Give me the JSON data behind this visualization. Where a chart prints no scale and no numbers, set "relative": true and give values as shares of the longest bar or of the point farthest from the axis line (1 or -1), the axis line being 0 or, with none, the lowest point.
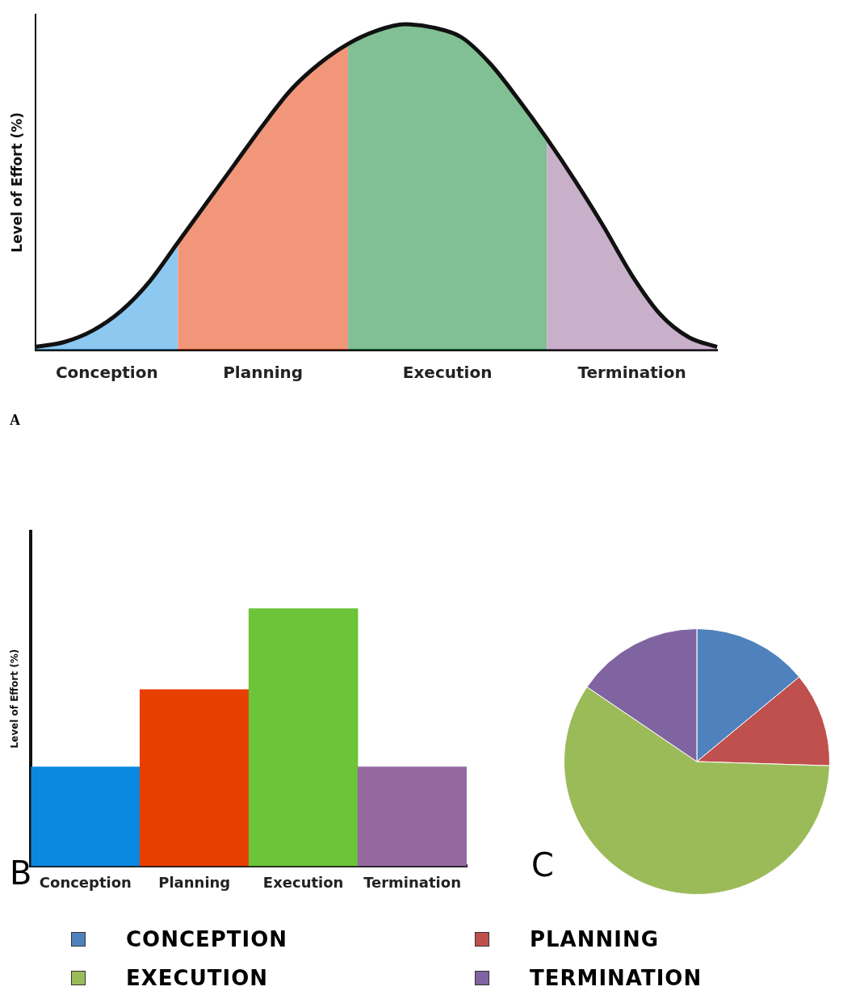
{
  "chart_data": [
    {
      "type": "area",
      "ylabel": "Level of Effort (%)",
      "relative": true,
      "categories": [
        null,
        null,
        null,
        null,
        null,
        null,
        null,
        null,
        null,
        null,
        null,
        null,
        null,
        null,
        null,
        null,
        null,
        null,
        null,
        null,
        null,
        null,
        null,
        null,
        null
      ],
      "marker": "none",
      "legend": false,
      "grid": false,
      "annotations": [
        "A"
      ],
      "series": [
        {
          "name": "Conception",
          "color": "#2f9be6",
          "values": [
            0.01,
            0.025,
            0.06,
            0.12,
            0.21,
            0.33,
            null,
            null,
            null,
            null,
            null,
            null,
            null,
            null,
            null,
            null,
            null,
            null,
            null,
            null,
            null,
            null,
            null,
            null,
            null
          ]
        },
        {
          "name": "Planning",
          "color": "#e8400c",
          "values": [
            null,
            null,
            null,
            null,
            null,
            0.33,
            0.45,
            0.57,
            0.69,
            0.8,
            0.88,
            0.94,
            null,
            null,
            null,
            null,
            null,
            null,
            null,
            null,
            null,
            null,
            null,
            null,
            null
          ]
        },
        {
          "name": "Execution",
          "color": "#1a8c3c",
          "values": [
            null,
            null,
            null,
            null,
            null,
            null,
            null,
            null,
            null,
            null,
            null,
            0.94,
            0.98,
            1,
            0.99,
            0.96,
            0.88,
            0.77,
            0.65,
            null,
            null,
            null,
            null,
            null,
            null
          ]
        },
        {
          "name": "Termination",
          "color": "#9b6fa0",
          "values": [
            null,
            null,
            null,
            null,
            null,
            null,
            null,
            null,
            null,
            null,
            null,
            null,
            null,
            null,
            null,
            null,
            null,
            null,
            0.65,
            0.52,
            0.38,
            0.23,
            0.11,
            0.04,
            0.01
          ]
        },
        {
          "type": "line",
          "color": "#111111",
          "values": [
            0.01,
            0.025,
            0.06,
            0.12,
            0.21,
            0.33,
            0.45,
            0.57,
            0.69,
            0.8,
            0.88,
            0.94,
            0.98,
            1,
            0.99,
            0.96,
            0.88,
            0.77,
            0.65,
            0.52,
            0.38,
            0.23,
            0.11,
            0.04,
            0.01
          ]
        }
      ]
    },
    {
      "type": "bar",
      "ylabel": "Level of Effort (%)",
      "relative": true,
      "categories": [
        "Conception",
        "Planning",
        "Execution",
        "Termination"
      ],
      "values": [
        0.385,
        0.686,
        1,
        0.385
      ],
      "colors": [
        "#0a88e0",
        "#e83e00",
        "#6cc438",
        "#9668a0"
      ],
      "legend": false,
      "grid": false,
      "annotations": [
        "B"
      ]
    },
    {
      "type": "pie",
      "categories": [
        "CONCEPTION",
        "PLANNING",
        "EXECUTION",
        "TERMINATION"
      ],
      "values": [
        14,
        11.5,
        59,
        15.5
      ],
      "colors": [
        "#4f81bd",
        "#c0504d",
        "#9bbb59",
        "#8064a2"
      ],
      "legend": "bottom",
      "annotations": [
        "C"
      ]
    }
  ]
}
